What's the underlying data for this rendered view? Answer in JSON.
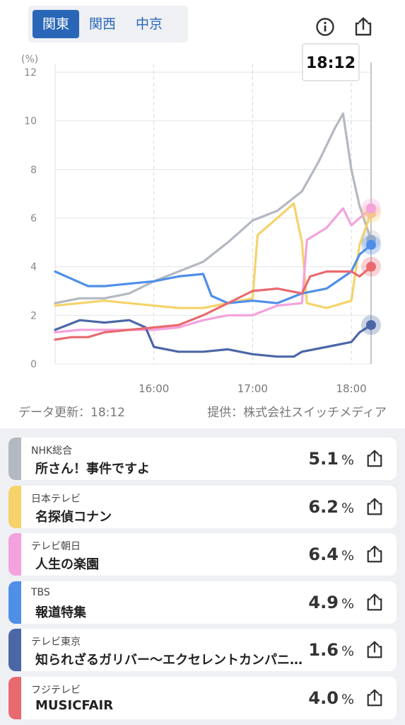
{
  "region_tabs": [
    "関東",
    "関西",
    "中京"
  ],
  "active_tab": 0,
  "icons": {
    "info": "info-icon",
    "share": "share-icon"
  },
  "cursor_time": "18:12",
  "footer": {
    "update": "データ更新：18:12",
    "provider": "提供：株式会社スイッチメディア"
  },
  "chart_data": {
    "type": "line",
    "title": "",
    "xlabel": "",
    "ylabel": "(%)",
    "ylim": [
      0,
      12
    ],
    "xlim": [
      "15:00",
      "18:12"
    ],
    "yticks": [
      "0",
      "2",
      "4",
      "6",
      "8",
      "10",
      "12"
    ],
    "xticks": [
      "16:00",
      "17:00",
      "18:00"
    ],
    "grid": true,
    "series": [
      {
        "name": "NHK総合",
        "color": "#b3b8c1",
        "x": [
          "15:00",
          "15:15",
          "15:30",
          "15:45",
          "16:00",
          "16:15",
          "16:30",
          "16:45",
          "17:00",
          "17:15",
          "17:30",
          "17:40",
          "17:50",
          "17:55",
          "18:00",
          "18:05",
          "18:12"
        ],
        "values": [
          2.5,
          2.7,
          2.7,
          2.9,
          3.4,
          3.8,
          4.2,
          5.0,
          5.9,
          6.3,
          7.1,
          8.3,
          9.7,
          10.3,
          8.0,
          6.5,
          5.1
        ]
      },
      {
        "name": "日本テレビ",
        "color": "#f5d36a",
        "x": [
          "15:00",
          "15:15",
          "15:30",
          "15:45",
          "16:00",
          "16:15",
          "16:30",
          "16:45",
          "17:00",
          "17:03",
          "17:15",
          "17:25",
          "17:30",
          "17:33",
          "17:45",
          "18:00",
          "18:05",
          "18:12"
        ],
        "values": [
          2.4,
          2.5,
          2.6,
          2.5,
          2.4,
          2.3,
          2.3,
          2.5,
          2.7,
          5.3,
          6.0,
          6.6,
          5.0,
          2.5,
          2.3,
          2.6,
          4.9,
          6.2
        ]
      },
      {
        "name": "テレビ朝日",
        "color": "#f4a2dd",
        "x": [
          "15:00",
          "15:15",
          "15:30",
          "15:45",
          "16:00",
          "16:15",
          "16:30",
          "16:45",
          "17:00",
          "17:15",
          "17:30",
          "17:33",
          "17:45",
          "17:55",
          "18:00",
          "18:05",
          "18:12"
        ],
        "values": [
          1.3,
          1.4,
          1.4,
          1.4,
          1.4,
          1.5,
          1.8,
          2.0,
          2.0,
          2.4,
          2.5,
          5.1,
          5.6,
          6.4,
          5.7,
          6.0,
          6.4
        ]
      },
      {
        "name": "TBS",
        "color": "#4f8fe8",
        "x": [
          "15:00",
          "15:10",
          "15:20",
          "15:30",
          "15:45",
          "16:00",
          "16:15",
          "16:30",
          "16:35",
          "16:45",
          "17:00",
          "17:15",
          "17:30",
          "17:45",
          "18:00",
          "18:05",
          "18:12"
        ],
        "values": [
          3.8,
          3.5,
          3.2,
          3.2,
          3.3,
          3.4,
          3.6,
          3.7,
          2.8,
          2.5,
          2.6,
          2.5,
          2.9,
          3.1,
          3.8,
          4.5,
          4.9
        ]
      },
      {
        "name": "テレビ東京",
        "color": "#4b67a6",
        "x": [
          "15:00",
          "15:15",
          "15:30",
          "15:45",
          "15:55",
          "16:00",
          "16:15",
          "16:30",
          "16:45",
          "17:00",
          "17:15",
          "17:25",
          "17:30",
          "17:45",
          "18:00",
          "18:05",
          "18:12"
        ],
        "values": [
          1.4,
          1.8,
          1.7,
          1.8,
          1.5,
          0.7,
          0.5,
          0.5,
          0.6,
          0.4,
          0.3,
          0.3,
          0.5,
          0.7,
          0.9,
          1.3,
          1.6
        ]
      },
      {
        "name": "フジテレビ",
        "color": "#e86a6f",
        "x": [
          "15:00",
          "15:10",
          "15:20",
          "15:30",
          "15:45",
          "16:00",
          "16:15",
          "16:30",
          "16:45",
          "17:00",
          "17:15",
          "17:30",
          "17:35",
          "17:45",
          "18:00",
          "18:05",
          "18:12"
        ],
        "values": [
          1.0,
          1.1,
          1.1,
          1.3,
          1.4,
          1.5,
          1.6,
          2.0,
          2.5,
          3.0,
          3.1,
          2.9,
          3.6,
          3.8,
          3.8,
          3.6,
          4.0
        ]
      }
    ]
  },
  "programs": [
    {
      "channel": "NHK総合",
      "title": "所さん！事件ですよ",
      "value": "5.1",
      "unit": "%",
      "color": "#b3b8c1"
    },
    {
      "channel": "日本テレビ",
      "title": "名探偵コナン",
      "value": "6.2",
      "unit": "%",
      "color": "#f5d36a"
    },
    {
      "channel": "テレビ朝日",
      "title": "人生の楽園",
      "value": "6.4",
      "unit": "%",
      "color": "#f4a2dd"
    },
    {
      "channel": "TBS",
      "title": "報道特集",
      "value": "4.9",
      "unit": "%",
      "color": "#4f8fe8"
    },
    {
      "channel": "テレビ東京",
      "title": "知られざるガリバー〜エクセレントカンパニーファイル〜",
      "value": "1.6",
      "unit": "%",
      "color": "#4b67a6"
    },
    {
      "channel": "フジテレビ",
      "title": "MUSICFAIR",
      "value": "4.0",
      "unit": "%",
      "color": "#e86a6f"
    }
  ]
}
